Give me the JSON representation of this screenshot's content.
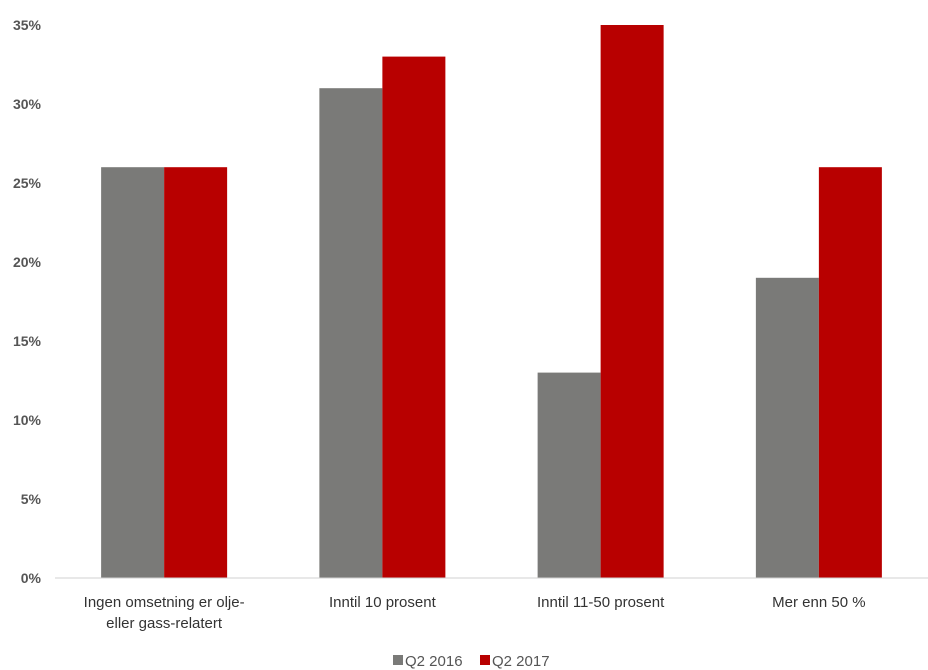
{
  "chart_data": {
    "type": "bar",
    "title": "",
    "xlabel": "",
    "ylabel": "",
    "categories": [
      [
        "Ingen omsetning er olje-",
        "eller gass-relatert"
      ],
      [
        "Inntil 10 prosent"
      ],
      [
        "Inntil 11-50 prosent"
      ],
      [
        "Mer enn 50 %"
      ]
    ],
    "series": [
      {
        "name": "Q2 2016",
        "color": "#7a7a78",
        "values": [
          26,
          31,
          13,
          19
        ]
      },
      {
        "name": "Q2 2017",
        "color": "#b80000",
        "values": [
          26,
          33,
          35,
          26
        ]
      }
    ],
    "ylim": [
      0,
      35
    ],
    "yticks": [
      0,
      5,
      10,
      15,
      20,
      25,
      30,
      35
    ],
    "ytick_labels": [
      "0%",
      "5%",
      "10%",
      "15%",
      "20%",
      "25%",
      "30%",
      "35%"
    ],
    "grid": false,
    "legend_position": "bottom-center"
  }
}
